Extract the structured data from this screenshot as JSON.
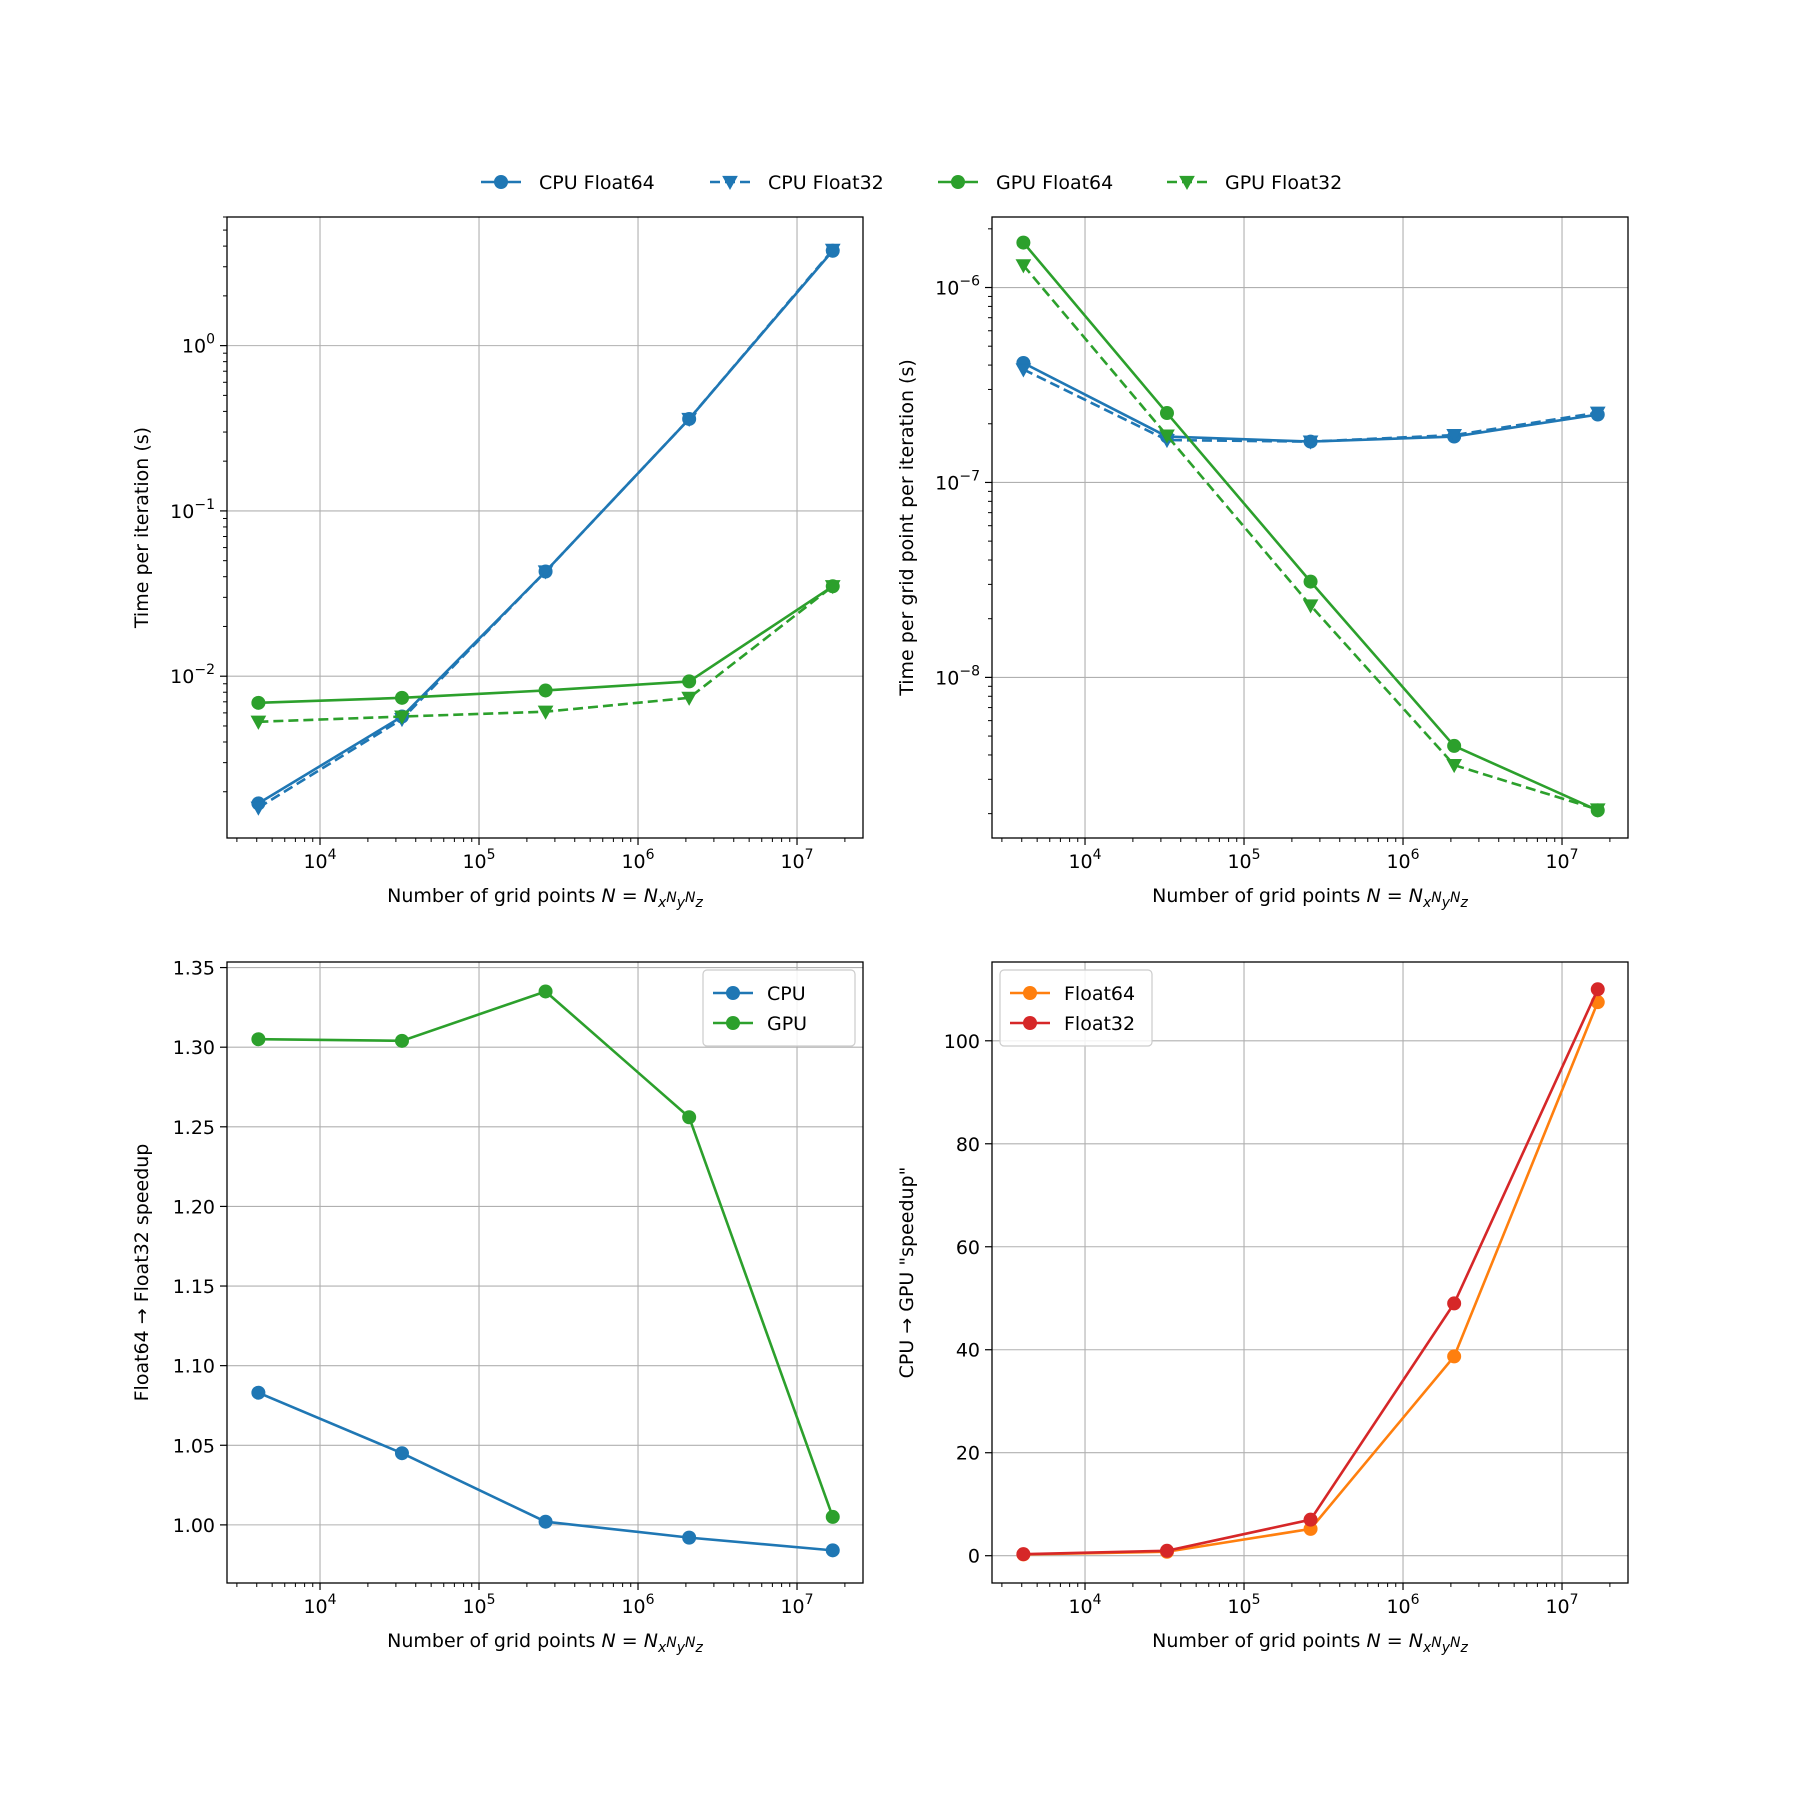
{
  "figure_legend": [
    {
      "label": "CPU Float64",
      "color": "#1f77b4",
      "marker": "o",
      "dash": false
    },
    {
      "label": "CPU Float32",
      "color": "#1f77b4",
      "marker": "v",
      "dash": true
    },
    {
      "label": "GPU Float64",
      "color": "#2ca02c",
      "marker": "o",
      "dash": false
    },
    {
      "label": "GPU Float32",
      "color": "#2ca02c",
      "marker": "v",
      "dash": true
    }
  ],
  "chart_data": [
    {
      "id": "time-per-iteration",
      "type": "line",
      "xscale": "log",
      "yscale": "log",
      "xlim": [
        2600,
        26000000
      ],
      "ylim": [
        0.00105,
        6.0
      ],
      "xlabel": "Number of grid points N = NxNyNz",
      "ylabel": "Time per iteration (s)",
      "x": [
        4096,
        32768,
        262144,
        2097152,
        16777216
      ],
      "xticks": [
        {
          "value": 10000,
          "base": "10",
          "exp": "4"
        },
        {
          "value": 100000,
          "base": "10",
          "exp": "5"
        },
        {
          "value": 1000000,
          "base": "10",
          "exp": "6"
        },
        {
          "value": 10000000,
          "base": "10",
          "exp": "7"
        }
      ],
      "yticks": [
        {
          "value": 1,
          "base": "10",
          "exp": "0"
        },
        {
          "value": 0.1,
          "base": "10",
          "exp": "−1"
        },
        {
          "value": 0.01,
          "base": "10",
          "exp": "−2"
        }
      ],
      "series": [
        {
          "name": "CPU Float64",
          "color": "#1f77b4",
          "marker": "o",
          "dash": false,
          "values": [
            0.0017,
            0.0057,
            0.043,
            0.36,
            3.75
          ]
        },
        {
          "name": "CPU Float32",
          "color": "#1f77b4",
          "marker": "v",
          "dash": true,
          "values": [
            0.0016,
            0.0055,
            0.043,
            0.36,
            3.8
          ]
        },
        {
          "name": "GPU Float64",
          "color": "#2ca02c",
          "marker": "o",
          "dash": false,
          "values": [
            0.0069,
            0.0074,
            0.0082,
            0.0093,
            0.035
          ]
        },
        {
          "name": "GPU Float32",
          "color": "#2ca02c",
          "marker": "v",
          "dash": true,
          "values": [
            0.0053,
            0.0057,
            0.0061,
            0.0074,
            0.035
          ]
        }
      ]
    },
    {
      "id": "time-per-grid-point",
      "type": "line",
      "xscale": "log",
      "yscale": "log",
      "xlim": [
        2600,
        26000000
      ],
      "ylim": [
        1.5e-09,
        2.3e-06
      ],
      "xlabel": "Number of grid points N = NxNyNz",
      "ylabel": "Time per grid point per iteration (s)",
      "x": [
        4096,
        32768,
        262144,
        2097152,
        16777216
      ],
      "xticks": [
        {
          "value": 10000,
          "base": "10",
          "exp": "4"
        },
        {
          "value": 100000,
          "base": "10",
          "exp": "5"
        },
        {
          "value": 1000000,
          "base": "10",
          "exp": "6"
        },
        {
          "value": 10000000,
          "base": "10",
          "exp": "7"
        }
      ],
      "yticks": [
        {
          "value": 1e-06,
          "base": "10",
          "exp": "−6"
        },
        {
          "value": 1e-07,
          "base": "10",
          "exp": "−7"
        },
        {
          "value": 1e-08,
          "base": "10",
          "exp": "−8"
        }
      ],
      "series": [
        {
          "name": "CPU Float64",
          "color": "#1f77b4",
          "marker": "o",
          "dash": false,
          "values": [
            4.1e-07,
            1.72e-07,
            1.62e-07,
            1.72e-07,
            2.23e-07
          ]
        },
        {
          "name": "CPU Float32",
          "color": "#1f77b4",
          "marker": "v",
          "dash": true,
          "values": [
            3.8e-07,
            1.65e-07,
            1.62e-07,
            1.75e-07,
            2.28e-07
          ]
        },
        {
          "name": "GPU Float64",
          "color": "#2ca02c",
          "marker": "o",
          "dash": false,
          "values": [
            1.7e-06,
            2.27e-07,
            3.1e-08,
            4.45e-09,
            2.08e-09
          ]
        },
        {
          "name": "GPU Float32",
          "color": "#2ca02c",
          "marker": "v",
          "dash": true,
          "values": [
            1.3e-06,
            1.74e-07,
            2.34e-08,
            3.55e-09,
            2.1e-09
          ]
        }
      ]
    },
    {
      "id": "float-speedup",
      "type": "line",
      "xscale": "log",
      "yscale": "linear",
      "xlim": [
        2600,
        26000000
      ],
      "ylim": [
        0.9635,
        1.3535
      ],
      "xlabel": "Number of grid points N = NxNyNz",
      "ylabel": "Float64 → Float32 speedup",
      "x": [
        4096,
        32768,
        262144,
        2097152,
        16777216
      ],
      "xticks": [
        {
          "value": 10000,
          "base": "10",
          "exp": "4"
        },
        {
          "value": 100000,
          "base": "10",
          "exp": "5"
        },
        {
          "value": 1000000,
          "base": "10",
          "exp": "6"
        },
        {
          "value": 10000000,
          "base": "10",
          "exp": "7"
        }
      ],
      "yticks": [
        {
          "value": 1.0,
          "label": "1.00"
        },
        {
          "value": 1.05,
          "label": "1.05"
        },
        {
          "value": 1.1,
          "label": "1.10"
        },
        {
          "value": 1.15,
          "label": "1.15"
        },
        {
          "value": 1.2,
          "label": "1.20"
        },
        {
          "value": 1.25,
          "label": "1.25"
        },
        {
          "value": 1.3,
          "label": "1.30"
        },
        {
          "value": 1.35,
          "label": "1.35"
        }
      ],
      "legend": "top-right",
      "series": [
        {
          "name": "CPU",
          "color": "#1f77b4",
          "marker": "o",
          "dash": false,
          "values": [
            1.083,
            1.045,
            1.002,
            0.992,
            0.984
          ]
        },
        {
          "name": "GPU",
          "color": "#2ca02c",
          "marker": "o",
          "dash": false,
          "values": [
            1.305,
            1.304,
            1.335,
            1.256,
            1.005
          ]
        }
      ]
    },
    {
      "id": "cpu-gpu-speedup",
      "type": "line",
      "xscale": "log",
      "yscale": "linear",
      "xlim": [
        2600,
        26000000
      ],
      "ylim": [
        -5.3,
        115.3
      ],
      "xlabel": "Number of grid points N = NxNyNz",
      "ylabel": "CPU → GPU \"speedup\"",
      "x": [
        4096,
        32768,
        262144,
        2097152,
        16777216
      ],
      "xticks": [
        {
          "value": 10000,
          "base": "10",
          "exp": "4"
        },
        {
          "value": 100000,
          "base": "10",
          "exp": "5"
        },
        {
          "value": 1000000,
          "base": "10",
          "exp": "6"
        },
        {
          "value": 10000000,
          "base": "10",
          "exp": "7"
        }
      ],
      "yticks": [
        {
          "value": 0,
          "label": "0"
        },
        {
          "value": 20,
          "label": "20"
        },
        {
          "value": 40,
          "label": "40"
        },
        {
          "value": 60,
          "label": "60"
        },
        {
          "value": 80,
          "label": "80"
        },
        {
          "value": 100,
          "label": "100"
        }
      ],
      "legend": "top-left",
      "series": [
        {
          "name": "Float64",
          "color": "#ff7f0e",
          "marker": "o",
          "dash": false,
          "values": [
            0.25,
            0.77,
            5.2,
            38.7,
            107.5
          ]
        },
        {
          "name": "Float32",
          "color": "#d62728",
          "marker": "o",
          "dash": false,
          "values": [
            0.3,
            0.96,
            7.0,
            49.0,
            110.0
          ]
        }
      ]
    }
  ]
}
